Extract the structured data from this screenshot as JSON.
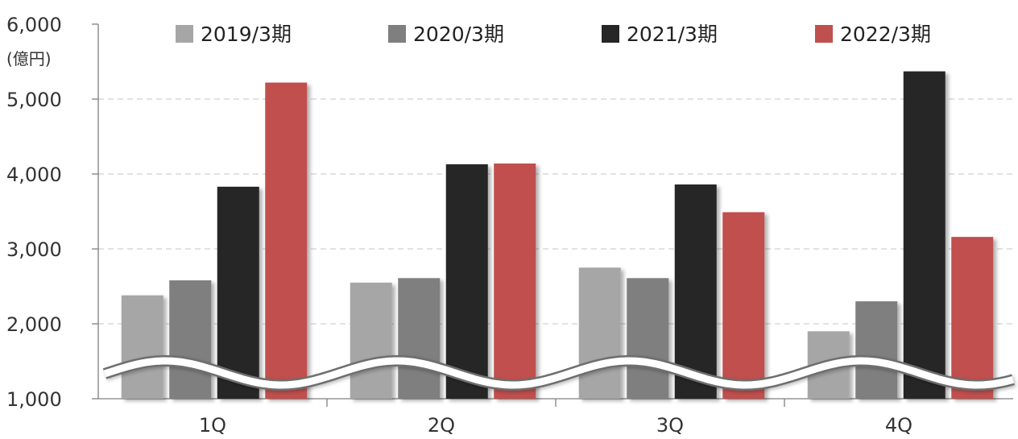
{
  "chart_data": {
    "type": "bar",
    "unit": "(億円)",
    "categories": [
      "1Q",
      "2Q",
      "3Q",
      "4Q"
    ],
    "series": [
      {
        "name": "2019/3期",
        "color": "#a6a6a6",
        "values": [
          2380,
          2550,
          2750,
          1900
        ]
      },
      {
        "name": "2020/3期",
        "color": "#7f7f7f",
        "values": [
          2580,
          2610,
          2610,
          2300
        ]
      },
      {
        "name": "2021/3期",
        "color": "#262626",
        "values": [
          3830,
          4130,
          3860,
          5370
        ]
      },
      {
        "name": "2022/3期",
        "color": "#c0504d",
        "values": [
          5220,
          4140,
          3490,
          3160
        ]
      }
    ],
    "yticks": [
      1000,
      2000,
      3000,
      4000,
      5000,
      6000
    ],
    "ytick_labels": [
      "1,000",
      "2,000",
      "3,000",
      "4,000",
      "5,000",
      "6,000"
    ],
    "ylim": [
      1000,
      6000
    ],
    "grid": true,
    "axis_break": true,
    "legend_position": "top"
  }
}
